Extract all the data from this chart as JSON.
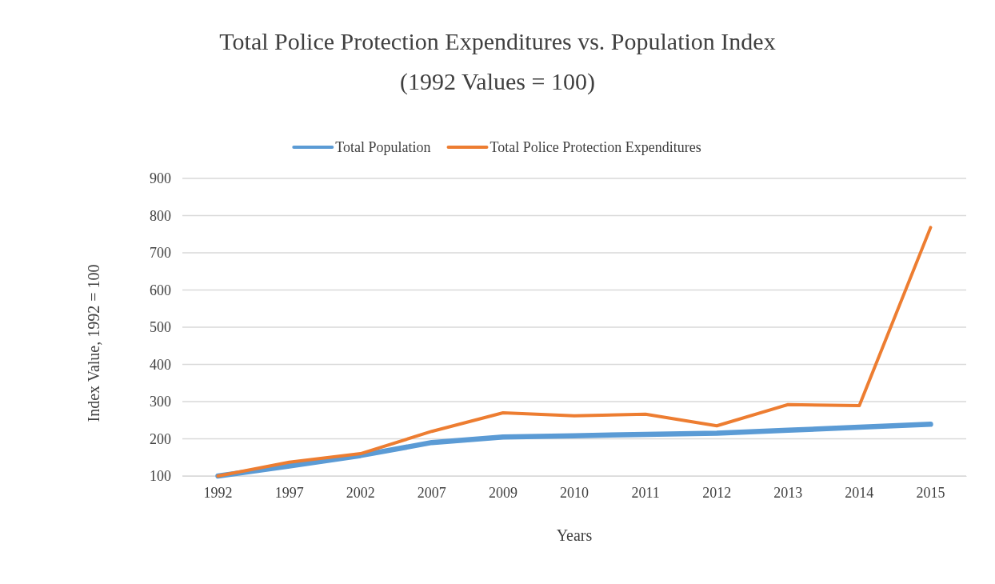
{
  "chart_data": {
    "type": "line",
    "title": "Total Police Protection Expenditures vs. Population Index",
    "subtitle": "(1992 Values = 100)",
    "xlabel": "Years",
    "ylabel": "Index Value, 1992 = 100",
    "categories": [
      "1992",
      "1997",
      "2002",
      "2007",
      "2009",
      "2010",
      "2011",
      "2012",
      "2013",
      "2014",
      "2015"
    ],
    "series": [
      {
        "name": "Total Population",
        "color": "#5b9bd5",
        "values": [
          100,
          127,
          155,
          190,
          205,
          208,
          212,
          215,
          223,
          231,
          239
        ]
      },
      {
        "name": "Total Police Protection Expenditures",
        "color": "#ed7d31",
        "values": [
          100,
          137,
          160,
          220,
          270,
          262,
          266,
          235,
          292,
          289,
          768
        ]
      }
    ],
    "ylim": [
      100,
      900
    ],
    "yticks": [
      100,
      200,
      300,
      400,
      500,
      600,
      700,
      800,
      900
    ],
    "grid": "y",
    "legend": "top",
    "marker": "none",
    "line_style": "solid"
  }
}
